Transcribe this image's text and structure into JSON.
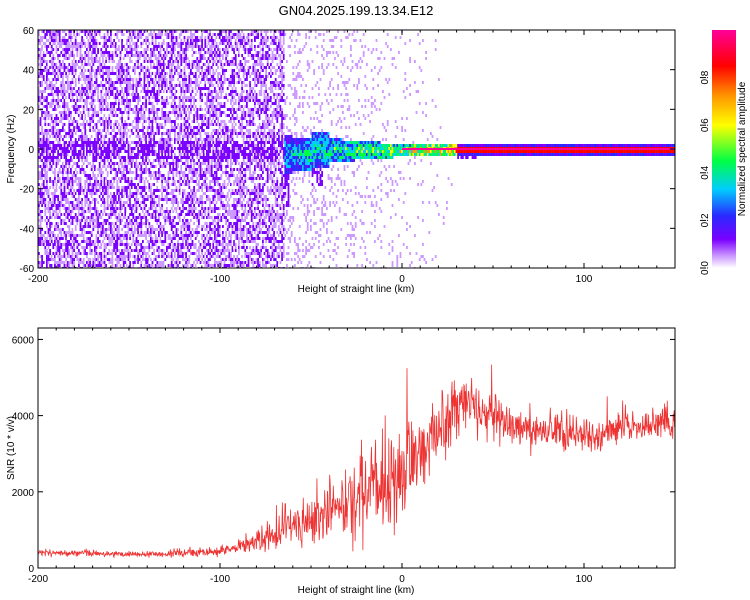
{
  "title": "GN04.2025.199.13.34.E12",
  "colors": {
    "snr_line": "#ee3333",
    "spectrum_colormap": [
      "#ffffff",
      "#cc99ff",
      "#7a00ff",
      "#2a2aff",
      "#00ccff",
      "#00ff44",
      "#ffff00",
      "#ff9900",
      "#ff0000",
      "#ff0099"
    ]
  },
  "chart_data": [
    {
      "type": "heatmap",
      "name": "spectrogram",
      "xlabel": "Height of straight line (km)",
      "ylabel": "Frequency (Hz)",
      "xlim": [
        -200,
        150
      ],
      "ylim": [
        -60,
        60
      ],
      "x_ticks": [
        -200,
        -100,
        0,
        100
      ],
      "x_tick_labels": [
        "-200",
        "-100",
        "0",
        "100"
      ],
      "y_ticks": [
        -60,
        -40,
        -20,
        0,
        20,
        40,
        60
      ],
      "y_tick_labels": [
        "-60",
        "-40",
        "-20",
        "0",
        "20",
        "40",
        "60"
      ],
      "colorbar": {
        "label": "Normalized spectral amplitude",
        "range": [
          0,
          1
        ],
        "ticks": [
          0.0,
          0.2,
          0.4,
          0.6,
          0.8
        ],
        "tick_labels": [
          "0.0",
          "0.2",
          "0.4",
          "0.6",
          "0.8"
        ]
      },
      "features": {
        "carrier_frequency_hz": 0,
        "noise_floor_region_km": [
          -200,
          -65
        ],
        "broadening_region_km": [
          -65,
          -5
        ],
        "max_doppler_spread_hz": [
          -28,
          6
        ]
      },
      "grid": false
    },
    {
      "type": "line",
      "name": "snr",
      "xlabel": "Height of straight line (km)",
      "ylabel": "SNR (10 * v/v)",
      "xlim": [
        -200,
        150
      ],
      "ylim": [
        0,
        6300
      ],
      "x_ticks": [
        -200,
        -100,
        0,
        100
      ],
      "x_tick_labels": [
        "-200",
        "-100",
        "0",
        "100"
      ],
      "y_ticks": [
        0,
        2000,
        4000,
        6000
      ],
      "y_tick_labels": [
        "0",
        "2000",
        "4000",
        "6000"
      ],
      "series": [
        {
          "x": [
            -200,
            -175,
            -150,
            -125,
            -100,
            -90,
            -80,
            -70,
            -60,
            -50,
            -40,
            -30,
            -20,
            -10,
            0,
            5,
            10,
            15,
            20,
            25,
            30,
            35,
            40,
            50,
            60,
            75,
            90,
            100,
            110,
            125,
            140,
            150
          ],
          "y": [
            400,
            380,
            360,
            380,
            450,
            550,
            700,
            900,
            1100,
            1250,
            1450,
            1650,
            1900,
            2150,
            2400,
            2700,
            3000,
            3300,
            3650,
            3950,
            4200,
            4300,
            4250,
            4000,
            3750,
            3650,
            3550,
            3550,
            3550,
            3650,
            3800,
            3900
          ],
          "spread": [
            80,
            90,
            90,
            100,
            150,
            200,
            350,
            500,
            650,
            800,
            950,
            1100,
            1200,
            1300,
            1350,
            1300,
            1250,
            1200,
            1100,
            1000,
            900,
            900,
            800,
            700,
            600,
            550,
            500,
            500,
            500,
            500,
            450,
            450
          ]
        }
      ],
      "grid": false
    }
  ]
}
